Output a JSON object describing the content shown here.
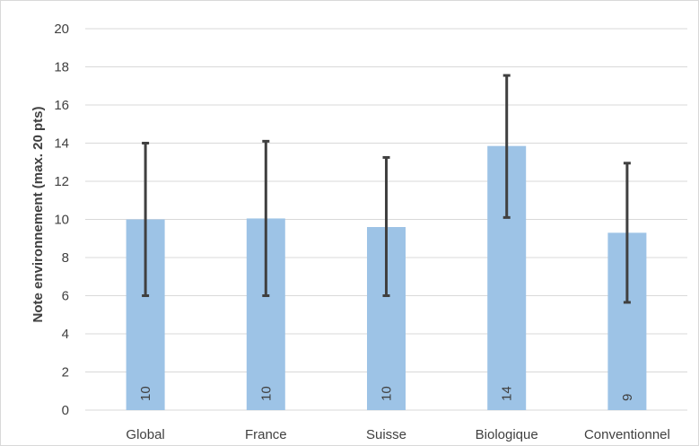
{
  "chart_data": {
    "type": "bar",
    "title": "",
    "xlabel": "",
    "ylabel": "Note environnement (max. 20 pts)",
    "categories": [
      "Global",
      "France",
      "Suisse",
      "Biologique",
      "Conventionnel"
    ],
    "values": [
      10.0,
      10.05,
      9.6,
      13.85,
      9.3
    ],
    "data_labels": [
      "10",
      "10",
      "10",
      "14",
      "9"
    ],
    "error_bars": {
      "lower": [
        6.0,
        6.0,
        6.0,
        10.1,
        5.65
      ],
      "upper": [
        14.0,
        14.1,
        13.25,
        17.55,
        12.95
      ]
    },
    "ylim": [
      0,
      20
    ],
    "yticks": [
      0,
      2,
      4,
      6,
      8,
      10,
      12,
      14,
      16,
      18,
      20
    ],
    "grid": true,
    "legend": "none",
    "colors": {
      "bar": "#9DC3E6",
      "error_bar": "#404040",
      "grid": "#D9D9D9",
      "text": "#404040"
    }
  }
}
